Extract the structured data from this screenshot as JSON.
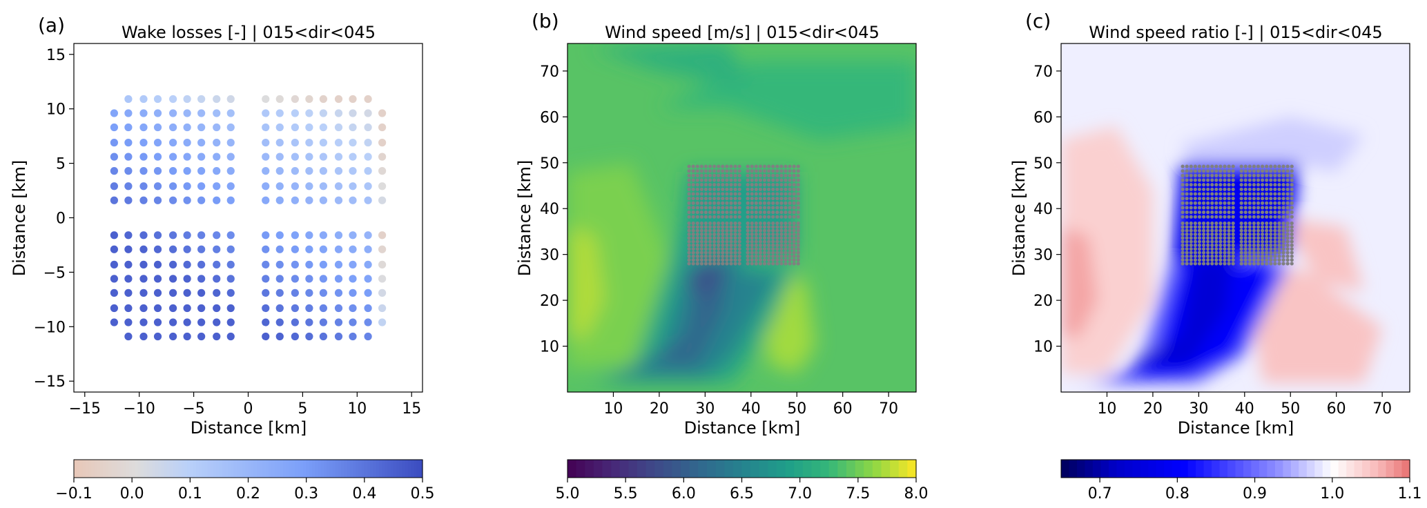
{
  "colors": {
    "ratio_low": "#00008b",
    "ratio_mid": "#ffffff",
    "ratio_high": "#f08080",
    "speed_low": "#440154",
    "speed_mid": "#21918c",
    "speed_high": "#fde725",
    "wake_low": "#e8c8b8",
    "wake_high": "#3b4cc0",
    "turbine_dot": "#808080"
  },
  "chart_data": [
    {
      "type": "scatter",
      "panel_label": "(a)",
      "title": "Wake losses [-] | 015<dir<045",
      "xlabel": "Distance [km]",
      "ylabel": "Distance [km]",
      "xlim": [
        -16,
        16
      ],
      "ylim": [
        -16,
        16
      ],
      "xticks": [
        -15,
        -10,
        -5,
        0,
        5,
        10,
        15
      ],
      "yticks": [
        -15,
        -10,
        -5,
        0,
        5,
        10,
        15
      ],
      "xtick_labels": [
        "−15",
        "−10",
        "−5",
        "0",
        "5",
        "10",
        "15"
      ],
      "ytick_labels": [
        "−15",
        "−10",
        "−5",
        "0",
        "5",
        "10",
        "15"
      ],
      "colorbar": {
        "min": -0.1,
        "max": 0.5,
        "ticks": [
          -0.1,
          0.0,
          0.1,
          0.2,
          0.3,
          0.4,
          0.5
        ],
        "tick_labels": [
          "−0.1",
          "0.0",
          "0.1",
          "0.2",
          "0.3",
          "0.4",
          "0.5"
        ],
        "colormap": "coolwarm_r"
      },
      "grid": false,
      "turbine_columns_x": [
        -12.3,
        -11.0,
        -9.6,
        -8.3,
        -6.9,
        -5.6,
        -4.3,
        -2.9,
        -1.6,
        1.6,
        2.9,
        4.3,
        5.6,
        6.9,
        8.3,
        9.6,
        11.0,
        12.3
      ],
      "turbine_rows_y_upper": [
        10.9,
        9.6,
        8.3,
        6.9,
        5.6,
        4.3,
        2.9,
        1.6
      ],
      "turbine_rows_y_lower": [
        -1.6,
        -2.9,
        -4.3,
        -5.6,
        -6.9,
        -8.3,
        -9.6,
        -10.9
      ],
      "wake_loss_range": [
        -0.05,
        0.45
      ]
    },
    {
      "type": "heatmap",
      "panel_label": "(b)",
      "title": "Wind speed [m/s] | 015<dir<045",
      "xlabel": "Distance [km]",
      "ylabel": "Distance [km]",
      "xlim": [
        0,
        76
      ],
      "ylim": [
        0,
        76
      ],
      "xticks": [
        10,
        20,
        30,
        40,
        50,
        60,
        70
      ],
      "yticks": [
        10,
        20,
        30,
        40,
        50,
        60,
        70
      ],
      "colorbar": {
        "min": 5.0,
        "max": 8.0,
        "ticks": [
          5.0,
          5.5,
          6.0,
          6.5,
          7.0,
          7.5,
          8.0
        ],
        "tick_labels": [
          "5.0",
          "5.5",
          "6.0",
          "6.5",
          "7.0",
          "7.5",
          "8.0"
        ],
        "colormap": "viridis"
      },
      "background_value": 7.4,
      "farm_extent_km": {
        "x": [
          25,
          51
        ],
        "y": [
          27,
          50
        ]
      },
      "grid": false
    },
    {
      "type": "heatmap",
      "panel_label": "(c)",
      "title": "Wind speed ratio [-] | 015<dir<045",
      "xlabel": "Distance [km]",
      "ylabel": "Distance [km]",
      "xlim": [
        0,
        76
      ],
      "ylim": [
        0,
        76
      ],
      "xticks": [
        10,
        20,
        30,
        40,
        50,
        60,
        70
      ],
      "yticks": [
        10,
        20,
        30,
        40,
        50,
        60,
        70
      ],
      "colorbar": {
        "min": 0.65,
        "max": 1.1,
        "ticks": [
          0.7,
          0.8,
          0.9,
          1.0,
          1.1
        ],
        "tick_labels": [
          "0.7",
          "0.8",
          "0.9",
          "1.0",
          "1.1"
        ],
        "colormap": "seismic"
      },
      "background_value": 0.99,
      "farm_extent_km": {
        "x": [
          25,
          51
        ],
        "y": [
          27,
          50
        ]
      },
      "grid": false
    }
  ]
}
